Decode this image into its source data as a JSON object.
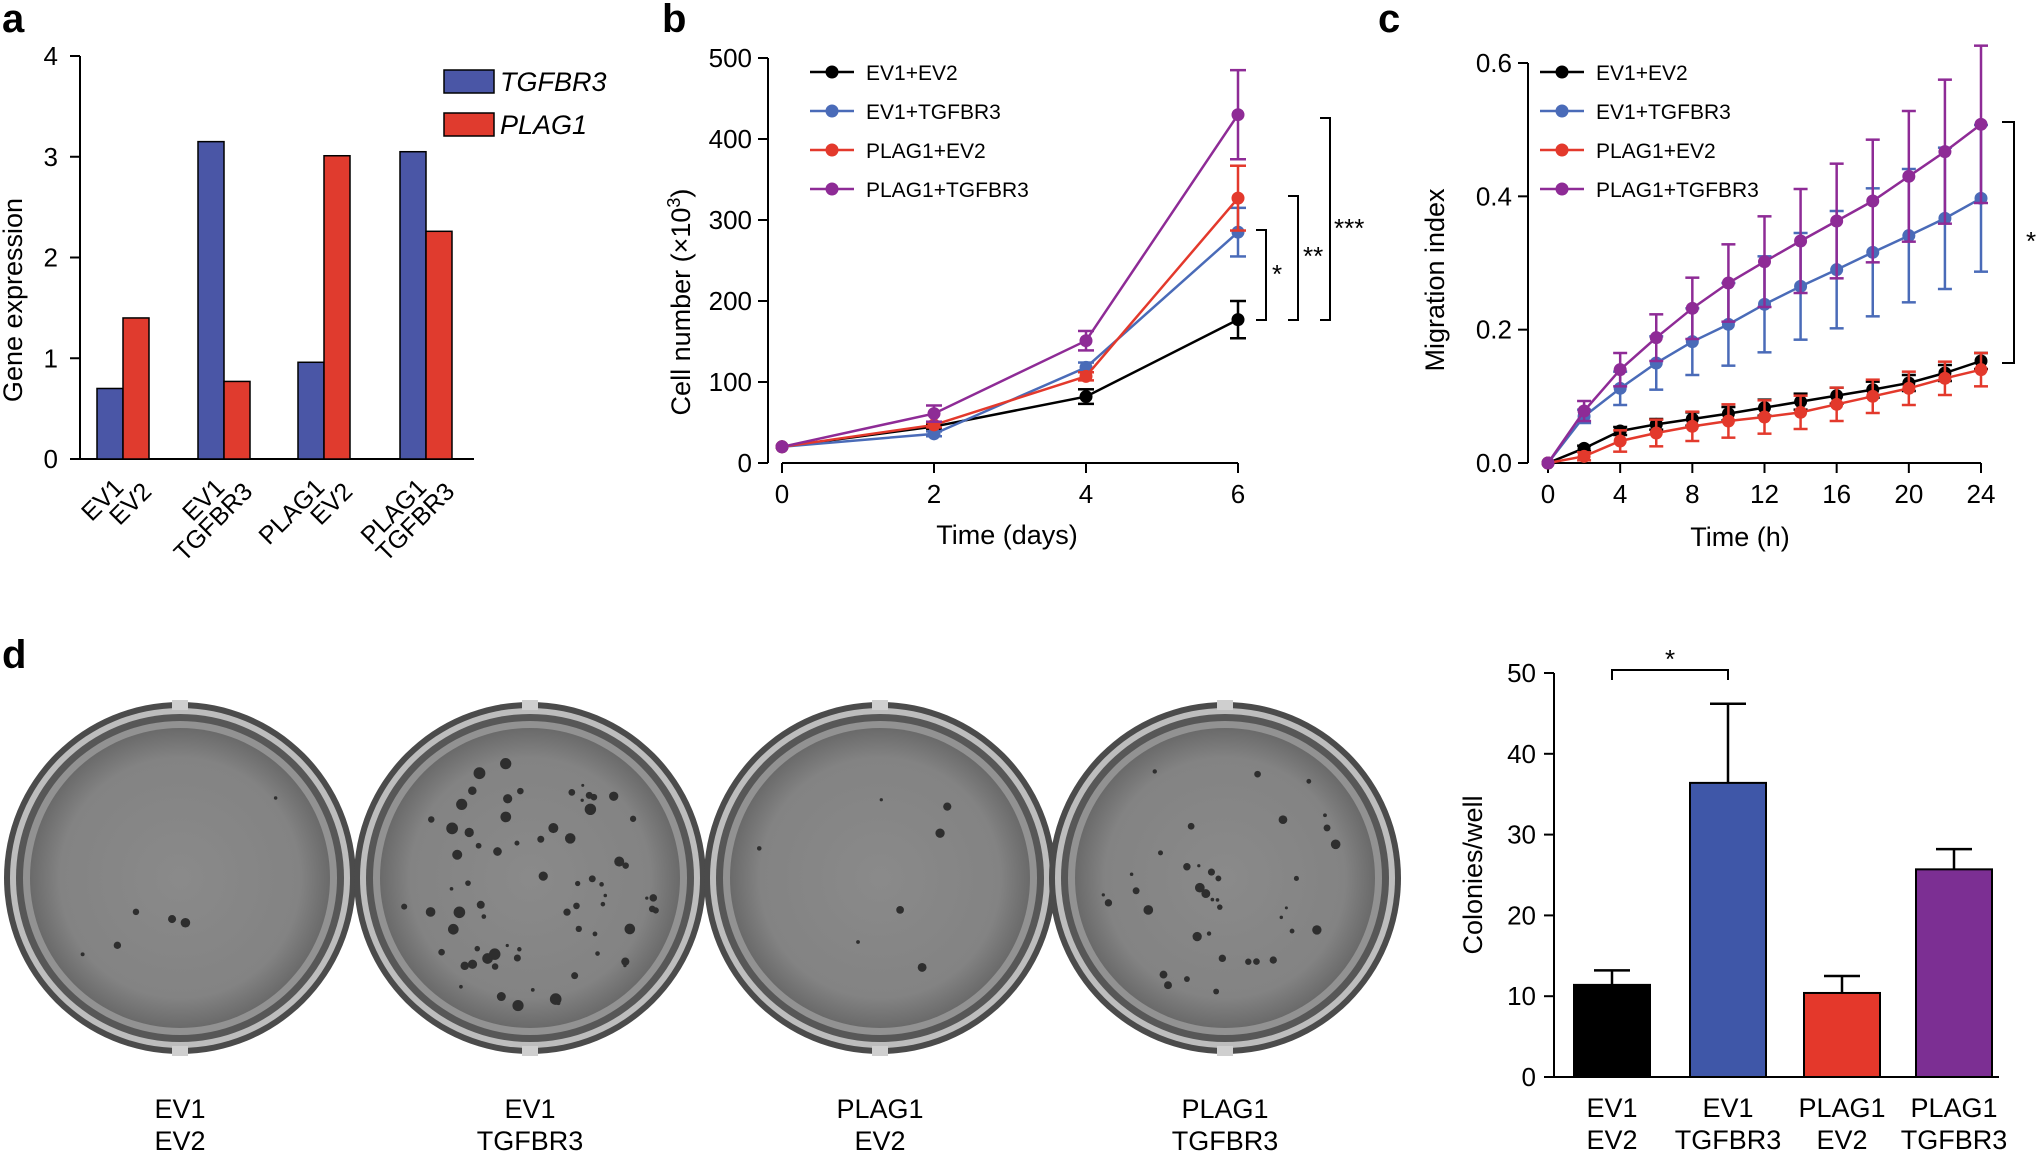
{
  "panel_labels": [
    "a",
    "b",
    "c",
    "d"
  ],
  "chart_data": [
    {
      "panel": "a",
      "type": "bar",
      "ylabel": "Gene expression",
      "ylim": [
        0,
        4
      ],
      "yticks": [
        0,
        1,
        2,
        3,
        4
      ],
      "categories": [
        [
          "EV1",
          "EV2"
        ],
        [
          "EV1",
          "TGFBR3"
        ],
        [
          "PLAG1",
          "EV2"
        ],
        [
          "PLAG1",
          "TGFBR3"
        ]
      ],
      "series": [
        {
          "name": "TGFBR3",
          "color": "#4a56a6",
          "values": [
            0.7,
            3.15,
            0.96,
            3.05
          ]
        },
        {
          "name": "PLAG1",
          "color": "#e03b2e",
          "values": [
            1.4,
            0.77,
            3.01,
            2.26
          ]
        }
      ]
    },
    {
      "panel": "b",
      "type": "line",
      "xlabel": "Time (days)",
      "ylabel": "Cell number (×10",
      "ylabel_sup": "3",
      "ylabel_end": ")",
      "xlim": [
        0,
        6
      ],
      "ylim": [
        0,
        500
      ],
      "xticks": [
        0,
        2,
        4,
        6
      ],
      "yticks": [
        0,
        100,
        200,
        300,
        400,
        500
      ],
      "x": [
        0,
        2,
        4,
        6
      ],
      "series": [
        {
          "name": "EV1+EV2",
          "color": "#000000",
          "values": [
            20,
            45,
            82,
            177
          ],
          "errors": [
            0,
            3,
            9,
            23
          ]
        },
        {
          "name": "EV1+TGFBR3",
          "color": "#4a6bb8",
          "values": [
            20,
            36,
            118,
            285
          ],
          "errors": [
            0,
            3,
            6,
            30
          ]
        },
        {
          "name": "PLAG1+EV2",
          "color": "#e3392c",
          "values": [
            20,
            47,
            107,
            327
          ],
          "errors": [
            0,
            3,
            5,
            40
          ]
        },
        {
          "name": "PLAG1+TGFBR3",
          "color": "#8e2b96",
          "values": [
            20,
            61,
            151,
            430
          ],
          "errors": [
            0,
            10,
            12,
            55
          ]
        }
      ],
      "significance": [
        "*",
        "**",
        "***"
      ]
    },
    {
      "panel": "c",
      "type": "line",
      "xlabel": "Time (h)",
      "ylabel": "Migration index",
      "xlim": [
        0,
        24
      ],
      "ylim": [
        0,
        0.6
      ],
      "xticks": [
        0,
        4,
        8,
        12,
        16,
        20,
        24
      ],
      "xtick_labels": [
        "0",
        "4",
        "8",
        "12",
        "16",
        "20",
        "24"
      ],
      "yticks": [
        0,
        0.2,
        0.4,
        0.6
      ],
      "ytick_labels": [
        "0.0",
        "0.2",
        "0.4",
        "0.6"
      ],
      "x": [
        0,
        2,
        4,
        6,
        8,
        10,
        12,
        14,
        16,
        18,
        20,
        22,
        24
      ],
      "series": [
        {
          "name": "EV1+EV2",
          "color": "#000000",
          "values": [
            0,
            0.022,
            0.048,
            0.058,
            0.066,
            0.074,
            0.083,
            0.092,
            0.101,
            0.11,
            0.12,
            0.135,
            0.153
          ],
          "errors": [
            0,
            0.004,
            0.006,
            0.008,
            0.01,
            0.01,
            0.012,
            0.012,
            0.012,
            0.012,
            0.012,
            0.012,
            0.012
          ]
        },
        {
          "name": "EV1+TGFBR3",
          "color": "#4a6bb8",
          "values": [
            0,
            0.07,
            0.112,
            0.15,
            0.182,
            0.208,
            0.238,
            0.265,
            0.29,
            0.316,
            0.341,
            0.367,
            0.397
          ],
          "errors": [
            0,
            0.01,
            0.025,
            0.04,
            0.05,
            0.062,
            0.072,
            0.08,
            0.088,
            0.096,
            0.1,
            0.106,
            0.11
          ]
        },
        {
          "name": "PLAG1+EV2",
          "color": "#e3392c",
          "values": [
            0,
            0.01,
            0.033,
            0.045,
            0.055,
            0.063,
            0.069,
            0.076,
            0.088,
            0.1,
            0.112,
            0.127,
            0.14
          ],
          "errors": [
            0,
            0.006,
            0.016,
            0.02,
            0.022,
            0.025,
            0.025,
            0.025,
            0.025,
            0.025,
            0.025,
            0.025,
            0.025
          ]
        },
        {
          "name": "PLAG1+TGFBR3",
          "color": "#8e2b96",
          "values": [
            0,
            0.078,
            0.14,
            0.188,
            0.232,
            0.27,
            0.302,
            0.333,
            0.363,
            0.393,
            0.43,
            0.467,
            0.508
          ],
          "errors": [
            0,
            0.015,
            0.025,
            0.035,
            0.046,
            0.058,
            0.068,
            0.078,
            0.086,
            0.092,
            0.098,
            0.108,
            0.118
          ]
        }
      ],
      "significance": [
        "*"
      ]
    },
    {
      "panel": "d",
      "type": "bar",
      "ylabel": "Colonies/well",
      "ylim": [
        0,
        50
      ],
      "yticks": [
        0,
        10,
        20,
        30,
        40,
        50
      ],
      "categories": [
        [
          "EV1",
          "EV2"
        ],
        [
          "EV1",
          "TGFBR3"
        ],
        [
          "PLAG1",
          "EV2"
        ],
        [
          "PLAG1",
          "TGFBR3"
        ]
      ],
      "colors": [
        "#000000",
        "#3f57a8",
        "#e4382b",
        "#7c2f93"
      ],
      "values": [
        11.4,
        36.4,
        10.4,
        25.7
      ],
      "errors": [
        1.8,
        9.8,
        2.1,
        2.5
      ],
      "significance": [
        {
          "from": 0,
          "to": 1,
          "label": "*"
        }
      ]
    }
  ],
  "plates": [
    {
      "line1": "EV1",
      "line2": "EV2"
    },
    {
      "line1": "EV1",
      "line2": "TGFBR3"
    },
    {
      "line1": "PLAG1",
      "line2": "EV2"
    },
    {
      "line1": "PLAG1",
      "line2": "TGFBR3"
    }
  ]
}
